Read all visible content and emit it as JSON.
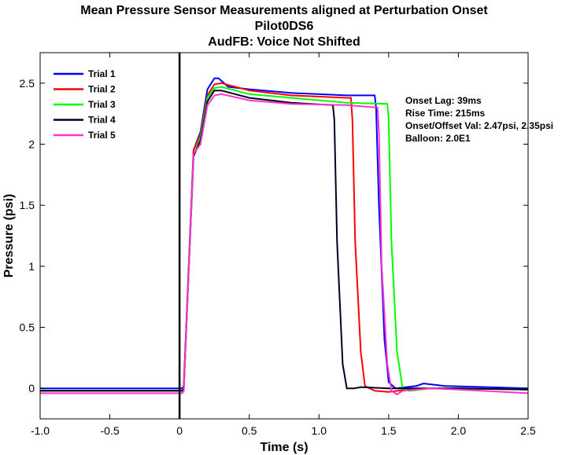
{
  "chart_data": {
    "type": "line",
    "title": [
      "Mean Pressure Sensor Measurements aligned at Perturbation Onset",
      "Pilot0DS6",
      "AudFB: Voice Not Shifted"
    ],
    "xlabel": "Time (s)",
    "ylabel": "Pressure (psi)",
    "xlim": [
      -1.0,
      2.5
    ],
    "ylim": [
      -0.25,
      2.75
    ],
    "xticks": [
      -1.0,
      -0.5,
      0,
      0.5,
      1.0,
      1.5,
      2.0,
      2.5
    ],
    "xtick_labels": [
      "-1.0",
      "-0.5",
      "0",
      "0.5",
      "1.0",
      "1.5",
      "2.0",
      "2.5"
    ],
    "yticks": [
      0,
      0.5,
      1,
      1.5,
      2,
      2.5
    ],
    "ytick_labels": [
      "0",
      "0.5",
      "1",
      "1.5",
      "2",
      "2.5"
    ],
    "grid": false,
    "legend_position": "top-left",
    "onset_marker_x": 0,
    "onset_marker_color": "#000000",
    "series": [
      {
        "name": "Trial 1",
        "color": "#0000ff",
        "points": [
          [
            -1.0,
            0.0
          ],
          [
            0.02,
            0.0
          ],
          [
            0.03,
            0.02
          ],
          [
            0.1,
            1.95
          ],
          [
            0.15,
            2.1
          ],
          [
            0.2,
            2.45
          ],
          [
            0.25,
            2.54
          ],
          [
            0.28,
            2.54
          ],
          [
            0.35,
            2.47
          ],
          [
            0.5,
            2.45
          ],
          [
            0.8,
            2.42
          ],
          [
            1.2,
            2.4
          ],
          [
            1.4,
            2.4
          ],
          [
            1.41,
            2.3
          ],
          [
            1.43,
            1.5
          ],
          [
            1.47,
            0.4
          ],
          [
            1.5,
            0.05
          ],
          [
            1.55,
            0.0
          ],
          [
            1.7,
            0.02
          ],
          [
            1.75,
            0.04
          ],
          [
            1.9,
            0.02
          ],
          [
            2.5,
            0.0
          ]
        ]
      },
      {
        "name": "Trial 2",
        "color": "#ff0000",
        "points": [
          [
            -1.0,
            -0.02
          ],
          [
            0.02,
            -0.02
          ],
          [
            0.03,
            0.0
          ],
          [
            0.1,
            1.95
          ],
          [
            0.15,
            2.08
          ],
          [
            0.2,
            2.4
          ],
          [
            0.25,
            2.49
          ],
          [
            0.3,
            2.5
          ],
          [
            0.5,
            2.44
          ],
          [
            0.8,
            2.4
          ],
          [
            1.2,
            2.38
          ],
          [
            1.23,
            2.38
          ],
          [
            1.24,
            2.2
          ],
          [
            1.26,
            1.2
          ],
          [
            1.3,
            0.3
          ],
          [
            1.33,
            0.02
          ],
          [
            1.4,
            -0.02
          ],
          [
            1.5,
            -0.03
          ],
          [
            1.7,
            0.0
          ],
          [
            2.0,
            0.0
          ],
          [
            2.5,
            -0.01
          ]
        ]
      },
      {
        "name": "Trial 3",
        "color": "#00ff00",
        "points": [
          [
            -1.0,
            -0.02
          ],
          [
            0.02,
            -0.02
          ],
          [
            0.03,
            0.0
          ],
          [
            0.1,
            1.9
          ],
          [
            0.15,
            2.06
          ],
          [
            0.2,
            2.38
          ],
          [
            0.25,
            2.46
          ],
          [
            0.3,
            2.47
          ],
          [
            0.5,
            2.41
          ],
          [
            0.8,
            2.38
          ],
          [
            1.2,
            2.34
          ],
          [
            1.49,
            2.33
          ],
          [
            1.5,
            2.2
          ],
          [
            1.52,
            1.2
          ],
          [
            1.56,
            0.3
          ],
          [
            1.6,
            0.0
          ],
          [
            1.65,
            -0.02
          ],
          [
            1.8,
            0.0
          ],
          [
            2.0,
            0.0
          ],
          [
            2.5,
            -0.01
          ]
        ]
      },
      {
        "name": "Trial 4",
        "color": "#000022",
        "points": [
          [
            -1.0,
            -0.02
          ],
          [
            0.02,
            -0.02
          ],
          [
            0.03,
            0.0
          ],
          [
            0.1,
            1.9
          ],
          [
            0.15,
            2.03
          ],
          [
            0.2,
            2.35
          ],
          [
            0.25,
            2.44
          ],
          [
            0.3,
            2.44
          ],
          [
            0.5,
            2.38
          ],
          [
            0.8,
            2.34
          ],
          [
            1.1,
            2.32
          ],
          [
            1.11,
            2.2
          ],
          [
            1.13,
            1.2
          ],
          [
            1.17,
            0.2
          ],
          [
            1.2,
            0.0
          ],
          [
            1.25,
            0.0
          ],
          [
            1.3,
            0.01
          ],
          [
            1.5,
            0.0
          ],
          [
            2.0,
            0.0
          ],
          [
            2.5,
            -0.01
          ]
        ]
      },
      {
        "name": "Trial 5",
        "color": "#ff33cc",
        "points": [
          [
            -1.0,
            -0.04
          ],
          [
            0.02,
            -0.04
          ],
          [
            0.03,
            -0.02
          ],
          [
            0.1,
            1.92
          ],
          [
            0.15,
            2.0
          ],
          [
            0.2,
            2.32
          ],
          [
            0.25,
            2.4
          ],
          [
            0.3,
            2.41
          ],
          [
            0.5,
            2.36
          ],
          [
            0.8,
            2.33
          ],
          [
            1.2,
            2.32
          ],
          [
            1.42,
            2.3
          ],
          [
            1.43,
            2.1
          ],
          [
            1.45,
            1.0
          ],
          [
            1.49,
            0.2
          ],
          [
            1.52,
            -0.02
          ],
          [
            1.56,
            -0.05
          ],
          [
            1.6,
            -0.02
          ],
          [
            1.8,
            0.0
          ],
          [
            2.0,
            -0.01
          ],
          [
            2.5,
            -0.04
          ]
        ]
      }
    ],
    "annotations": [
      "Onset Lag: 39ms",
      "Rise Time: 215ms",
      "Onset/Offset Val: 2.47psi, 2.35psi",
      "Balloon: 2.0E1"
    ]
  }
}
